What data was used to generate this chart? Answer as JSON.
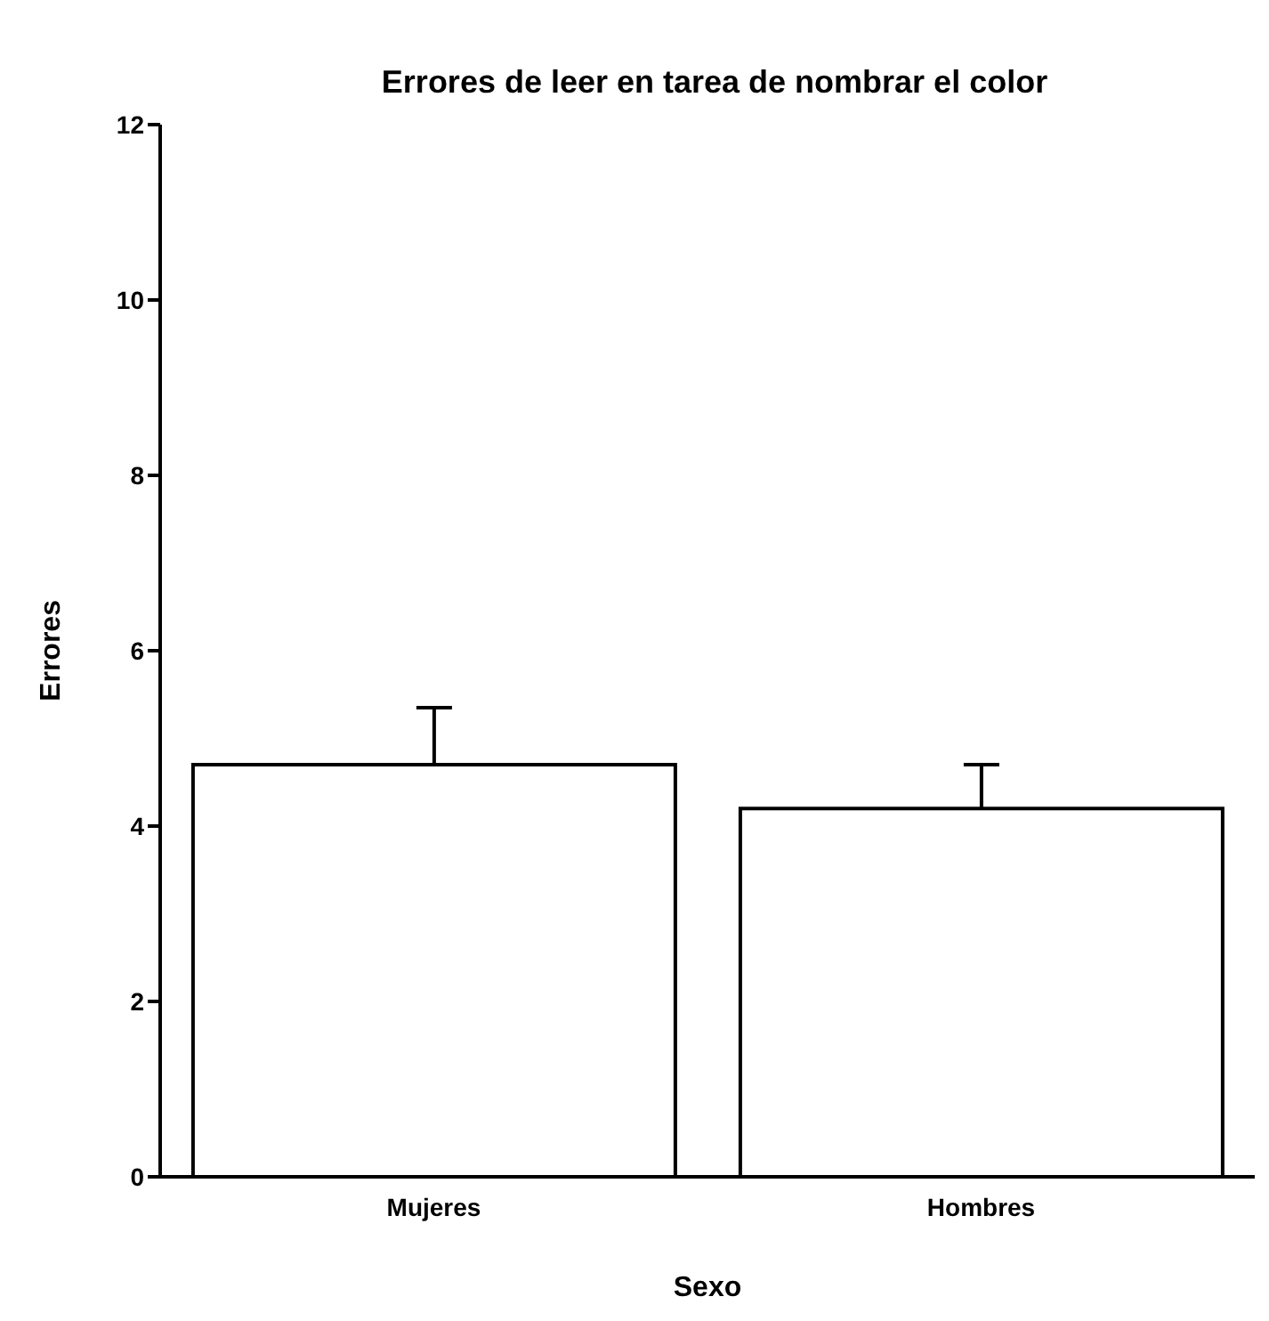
{
  "chart_data": {
    "type": "bar",
    "title": "Errores de leer en tarea de nombrar el color",
    "xlabel": "Sexo",
    "ylabel": "Errores",
    "categories": [
      "Mujeres",
      "Hombres"
    ],
    "values": [
      4.7,
      4.2
    ],
    "errors": [
      [
        4.7,
        5.35
      ],
      [
        4.2,
        4.7
      ]
    ],
    "color": "#ffffff",
    "ylim": [
      0,
      12
    ],
    "yticks": [
      0,
      2,
      4,
      6,
      8,
      10,
      12
    ]
  }
}
